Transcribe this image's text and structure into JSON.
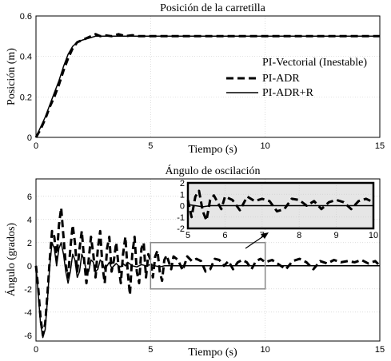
{
  "chart_data": [
    {
      "type": "line",
      "title": "Posición de la carretilla",
      "xlabel": "Tiempo (s)",
      "ylabel": "Posición (m)",
      "xlim": [
        0,
        15
      ],
      "ylim": [
        0,
        0.6
      ],
      "xticks": [
        "0",
        "5",
        "10",
        "15"
      ],
      "yticks": [
        "0",
        "0.2",
        "0.4",
        "0.6"
      ],
      "grid": true,
      "legend_position": "right",
      "legend": [
        "PI-Vectorial (Inestable)",
        "PI-ADR",
        "PI-ADR+R"
      ],
      "series": [
        {
          "name": "PI-ADR",
          "style": "dashed",
          "x": [
            0,
            0.2,
            0.4,
            0.6,
            0.8,
            1.0,
            1.2,
            1.4,
            1.6,
            1.8,
            2.0,
            2.2,
            2.4,
            2.6,
            2.8,
            3.0,
            3.3,
            3.6,
            3.9,
            4.2,
            4.5,
            5.0,
            6.0,
            7.0,
            8.0,
            9.0,
            10.0,
            11.0,
            12.0,
            13.0,
            14.0,
            15.0
          ],
          "y": [
            0,
            0.04,
            0.09,
            0.15,
            0.2,
            0.26,
            0.33,
            0.39,
            0.44,
            0.47,
            0.48,
            0.49,
            0.5,
            0.51,
            0.5,
            0.505,
            0.5,
            0.51,
            0.5,
            0.505,
            0.5,
            0.5,
            0.5,
            0.5,
            0.5,
            0.5,
            0.5,
            0.5,
            0.5,
            0.5,
            0.5,
            0.5
          ]
        },
        {
          "name": "PI-ADR+R",
          "style": "solid",
          "x": [
            0,
            0.2,
            0.4,
            0.6,
            0.8,
            1.0,
            1.2,
            1.4,
            1.6,
            1.8,
            2.0,
            2.3,
            2.6,
            3.0,
            3.5,
            4.0,
            5.0,
            7.0,
            10.0,
            15.0
          ],
          "y": [
            0,
            0.05,
            0.1,
            0.16,
            0.22,
            0.28,
            0.35,
            0.41,
            0.45,
            0.47,
            0.48,
            0.49,
            0.5,
            0.5,
            0.5,
            0.5,
            0.5,
            0.5,
            0.5,
            0.5
          ]
        }
      ]
    },
    {
      "type": "line",
      "title": "Ángulo de oscilación",
      "xlabel": "Tiempo (s)",
      "ylabel": "Ángulo (grados)",
      "xlim": [
        0,
        15
      ],
      "ylim": [
        -6.5,
        7.5
      ],
      "xticks": [
        "0",
        "5",
        "10",
        "15"
      ],
      "yticks": [
        "-6",
        "-4",
        "-2",
        "0",
        "2",
        "4",
        "6"
      ],
      "grid": true,
      "series": [
        {
          "name": "PI-ADR",
          "style": "dashed",
          "x": [
            0,
            0.1,
            0.2,
            0.3,
            0.4,
            0.5,
            0.6,
            0.7,
            0.8,
            0.9,
            1.0,
            1.1,
            1.2,
            1.3,
            1.4,
            1.5,
            1.6,
            1.7,
            1.8,
            1.9,
            2.0,
            2.1,
            2.2,
            2.3,
            2.4,
            2.5,
            2.6,
            2.7,
            2.8,
            2.9,
            3.0,
            3.1,
            3.2,
            3.3,
            3.4,
            3.5,
            3.6,
            3.7,
            3.8,
            3.9,
            4.0,
            4.1,
            4.2,
            4.3,
            4.4,
            4.5,
            4.6,
            4.7,
            4.8,
            4.9,
            5.0,
            5.1,
            5.2,
            5.3,
            5.4,
            5.5,
            5.6,
            5.7,
            5.8,
            5.9,
            6.0,
            6.2,
            6.4,
            6.6,
            6.8,
            7.0,
            7.2,
            7.4,
            7.6,
            7.8,
            8.0,
            8.2,
            8.4,
            8.6,
            8.8,
            9.0,
            9.2,
            9.4,
            9.6,
            9.8,
            10.0,
            10.3,
            10.6,
            10.9,
            11.2,
            11.5,
            11.8,
            12.1,
            12.4,
            12.7,
            13.0,
            13.3,
            13.6,
            13.9,
            14.2,
            14.5,
            14.8,
            15.0
          ],
          "y": [
            0,
            -2,
            -4.5,
            -6,
            -5,
            -2.5,
            0.5,
            3,
            2.5,
            0.5,
            3.5,
            5,
            2.5,
            0,
            -1,
            1.5,
            3.5,
            2,
            -0.5,
            1.5,
            3,
            0.5,
            -1.5,
            0.5,
            2.5,
            1,
            -1,
            1.5,
            3,
            0,
            -1.5,
            1.5,
            2.5,
            -0.5,
            0.5,
            2,
            0,
            -1.5,
            1,
            2.5,
            -0.5,
            -2.5,
            1,
            2.5,
            -0.5,
            -1.5,
            1.5,
            2,
            -1,
            1,
            0.5,
            -1,
            0.8,
            1.3,
            -0.5,
            -1.3,
            0.5,
            0.9,
            0.3,
            -0.3,
            0.8,
            0.5,
            -0.4,
            0.8,
            0.4,
            0.6,
            0.4,
            -0.5,
            -0.3,
            0.6,
            0.5,
            0,
            0.4,
            -0.3,
            0.3,
            0.5,
            0.3,
            -0.3,
            0.4,
            0.6,
            0.3,
            0.5,
            0.1,
            -0.3,
            0.4,
            0.6,
            0.3,
            -0.3,
            0.4,
            0.2,
            0.5,
            0.3,
            0.4,
            0.3,
            0.5,
            0.2,
            0.4,
            0
          ]
        },
        {
          "name": "PI-ADR+R",
          "style": "solid",
          "x": [
            0,
            0.1,
            0.2,
            0.3,
            0.4,
            0.5,
            0.6,
            0.7,
            0.8,
            0.9,
            1.0,
            1.1,
            1.2,
            1.3,
            1.4,
            1.5,
            1.6,
            1.7,
            1.8,
            1.9,
            2.0,
            2.1,
            2.2,
            2.3,
            2.4,
            2.5,
            2.6,
            2.7,
            2.8,
            2.9,
            3.0,
            3.1,
            3.2,
            3.3,
            3.4,
            3.5,
            3.6,
            3.7,
            3.8,
            3.9,
            4.0,
            4.2,
            4.4,
            4.6,
            4.8,
            5.0,
            5.2,
            5.4,
            5.6,
            5.8,
            6.0,
            6.5,
            7.0,
            8.0,
            9.0,
            10.0,
            12.0,
            15.0
          ],
          "y": [
            0,
            -2.5,
            -5,
            -6.2,
            -5.5,
            -3,
            0,
            2,
            1.5,
            0,
            1.5,
            2,
            1,
            -0.5,
            -1.5,
            -0.5,
            1,
            0.5,
            -1,
            -0.5,
            1,
            0.5,
            -0.5,
            -0.5,
            0.5,
            0.3,
            -0.5,
            -0.3,
            0.5,
            0.3,
            -0.3,
            0,
            0.3,
            -0.2,
            0,
            0.2,
            0,
            -0.1,
            0.2,
            0,
            0.3,
            0,
            -0.1,
            0.1,
            0,
            0.1,
            0,
            -0.1,
            0,
            0,
            0,
            0,
            0,
            0,
            0,
            0,
            0,
            0
          ]
        }
      ],
      "inset": {
        "xlim": [
          5,
          10
        ],
        "ylim": [
          -2,
          2
        ],
        "xticks": [
          "5",
          "6",
          "7",
          "8",
          "9",
          "10"
        ],
        "yticks": [
          "-2",
          "-1",
          "0",
          "1",
          "2"
        ],
        "grid": true,
        "zoom_region": {
          "x": [
            5,
            10
          ],
          "y": [
            -2,
            2
          ]
        }
      }
    }
  ]
}
